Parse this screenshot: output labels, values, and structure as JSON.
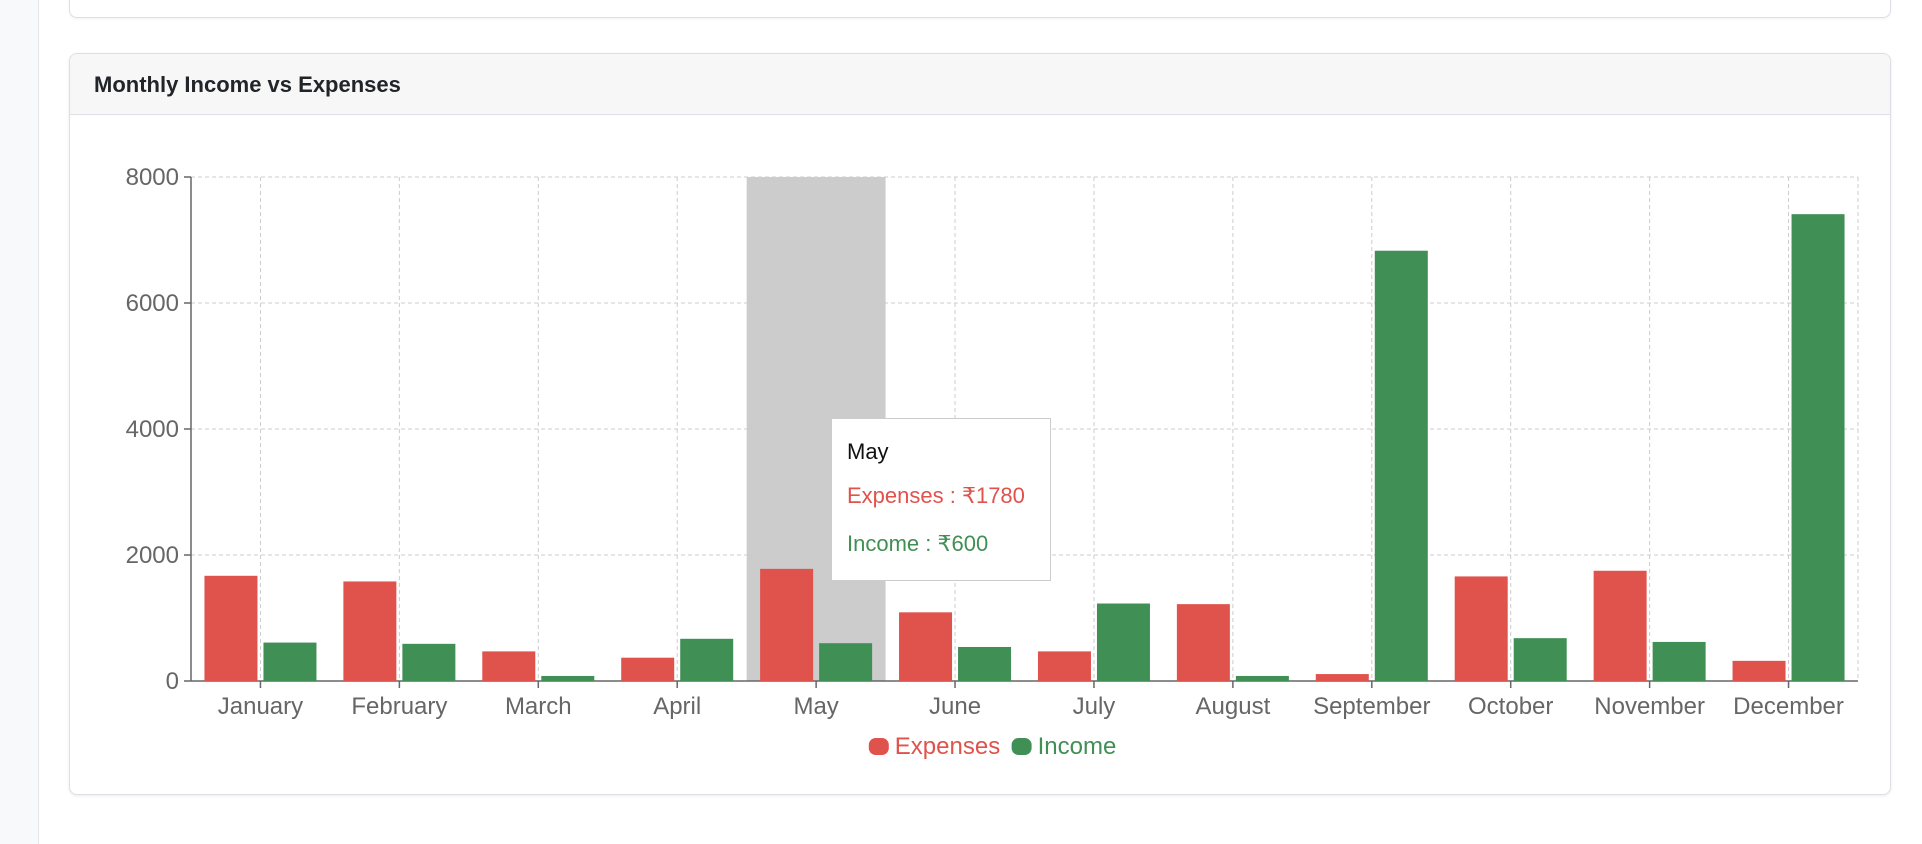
{
  "card": {
    "title": "Monthly Income vs Expenses"
  },
  "tooltip": {
    "label": "May",
    "expenses_name": "Expenses",
    "expenses_value": "₹1780",
    "income_name": "Income",
    "income_value": "₹600"
  },
  "chart_data": {
    "type": "bar",
    "categories": [
      "January",
      "February",
      "March",
      "April",
      "May",
      "June",
      "July",
      "August",
      "September",
      "October",
      "November",
      "December"
    ],
    "series": [
      {
        "name": "Expenses",
        "color": "#e0524c",
        "values": [
          1670,
          1580,
          470,
          370,
          1780,
          1090,
          470,
          1220,
          110,
          1660,
          1750,
          320
        ]
      },
      {
        "name": "Income",
        "color": "#408f55",
        "values": [
          610,
          590,
          80,
          670,
          600,
          540,
          1230,
          80,
          6830,
          680,
          620,
          7410
        ]
      }
    ],
    "yticks": [
      0,
      2000,
      4000,
      6000,
      8000
    ],
    "ylim": [
      0,
      8000
    ],
    "grid": true,
    "grid_style": "dashed",
    "legend": "bottom-center",
    "active_category": "May",
    "active_highlight_color": "#cccccc"
  }
}
